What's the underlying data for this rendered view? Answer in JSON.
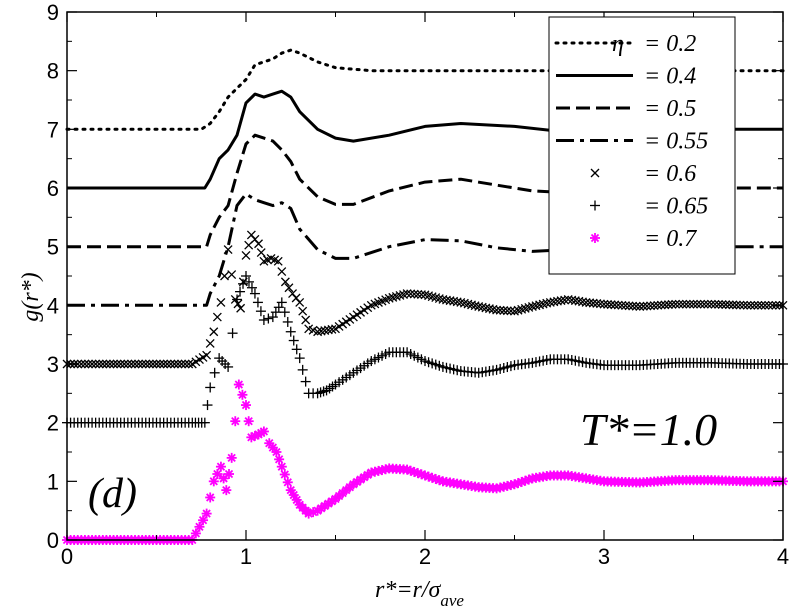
{
  "chart_data": {
    "type": "scatter",
    "title": "",
    "xlabel": {
      "prefix": "r*=r/σ",
      "subscript": "ave"
    },
    "ylabel": "g(r*)",
    "xlim": [
      0,
      4
    ],
    "ylim": [
      0,
      9
    ],
    "x_ticks": [
      "0",
      "1",
      "2",
      "3",
      "4"
    ],
    "y_ticks": [
      "0",
      "1",
      "2",
      "3",
      "4",
      "5",
      "6",
      "7",
      "8",
      "9"
    ],
    "x_minor_step": 0.5,
    "y_minor_step": 0.5,
    "grid": false,
    "legend_placement": "top-right",
    "annotations": {
      "temperature": "T*=1.0",
      "panel": "(d)"
    },
    "series": [
      {
        "name": "η = 0.2",
        "symbol": "η",
        "value_label": "= 0.2",
        "style": "dotted",
        "color": "#000000",
        "points": [
          [
            0,
            7
          ],
          [
            0.75,
            7
          ],
          [
            0.8,
            7.1
          ],
          [
            0.85,
            7.3
          ],
          [
            0.9,
            7.55
          ],
          [
            0.95,
            7.7
          ],
          [
            1.0,
            7.85
          ],
          [
            1.05,
            8.1
          ],
          [
            1.1,
            8.15
          ],
          [
            1.15,
            8.2
          ],
          [
            1.2,
            8.3
          ],
          [
            1.25,
            8.35
          ],
          [
            1.3,
            8.3
          ],
          [
            1.4,
            8.15
          ],
          [
            1.5,
            8.05
          ],
          [
            1.7,
            8.0
          ],
          [
            2.0,
            8.0
          ],
          [
            2.5,
            8.0
          ],
          [
            3.0,
            8.0
          ],
          [
            4.0,
            8.0
          ]
        ]
      },
      {
        "name": "η = 0.4",
        "value_label": "= 0.4",
        "style": "solid",
        "color": "#000000",
        "points": [
          [
            0,
            6
          ],
          [
            0.77,
            6
          ],
          [
            0.8,
            6.15
          ],
          [
            0.85,
            6.5
          ],
          [
            0.9,
            6.65
          ],
          [
            0.95,
            6.9
          ],
          [
            1.0,
            7.45
          ],
          [
            1.05,
            7.6
          ],
          [
            1.1,
            7.55
          ],
          [
            1.15,
            7.6
          ],
          [
            1.2,
            7.65
          ],
          [
            1.25,
            7.55
          ],
          [
            1.3,
            7.3
          ],
          [
            1.4,
            7.0
          ],
          [
            1.5,
            6.85
          ],
          [
            1.6,
            6.8
          ],
          [
            1.8,
            6.9
          ],
          [
            2.0,
            7.05
          ],
          [
            2.2,
            7.1
          ],
          [
            2.5,
            7.05
          ],
          [
            2.8,
            6.95
          ],
          [
            3.0,
            7.0
          ],
          [
            3.5,
            7.0
          ],
          [
            4.0,
            7.0
          ]
        ]
      },
      {
        "name": "η = 0.5",
        "value_label": "= 0.5",
        "style": "dashed",
        "color": "#000000",
        "points": [
          [
            0,
            5
          ],
          [
            0.78,
            5
          ],
          [
            0.8,
            5.2
          ],
          [
            0.85,
            5.5
          ],
          [
            0.9,
            5.7
          ],
          [
            0.95,
            6.25
          ],
          [
            1.0,
            6.75
          ],
          [
            1.05,
            6.9
          ],
          [
            1.1,
            6.85
          ],
          [
            1.15,
            6.8
          ],
          [
            1.2,
            6.65
          ],
          [
            1.25,
            6.45
          ],
          [
            1.3,
            6.15
          ],
          [
            1.4,
            5.85
          ],
          [
            1.5,
            5.72
          ],
          [
            1.6,
            5.72
          ],
          [
            1.8,
            5.95
          ],
          [
            2.0,
            6.1
          ],
          [
            2.2,
            6.15
          ],
          [
            2.4,
            6.05
          ],
          [
            2.6,
            5.95
          ],
          [
            2.8,
            5.92
          ],
          [
            3.0,
            6.0
          ],
          [
            3.3,
            6.05
          ],
          [
            3.6,
            6.0
          ],
          [
            4.0,
            6.0
          ]
        ]
      },
      {
        "name": "η = 0.55",
        "value_label": "= 0.55",
        "style": "dash-dot",
        "color": "#000000",
        "points": [
          [
            0,
            4
          ],
          [
            0.78,
            4
          ],
          [
            0.8,
            4.2
          ],
          [
            0.85,
            4.5
          ],
          [
            0.9,
            5.0
          ],
          [
            0.95,
            5.7
          ],
          [
            1.0,
            5.9
          ],
          [
            1.05,
            5.8
          ],
          [
            1.1,
            5.75
          ],
          [
            1.15,
            5.7
          ],
          [
            1.2,
            5.75
          ],
          [
            1.25,
            5.65
          ],
          [
            1.3,
            5.3
          ],
          [
            1.4,
            4.95
          ],
          [
            1.5,
            4.8
          ],
          [
            1.6,
            4.8
          ],
          [
            1.8,
            5.0
          ],
          [
            2.0,
            5.12
          ],
          [
            2.2,
            5.1
          ],
          [
            2.4,
            4.98
          ],
          [
            2.6,
            4.92
          ],
          [
            2.8,
            4.95
          ],
          [
            3.0,
            5.0
          ],
          [
            3.5,
            5.0
          ],
          [
            4.0,
            5.0
          ]
        ]
      },
      {
        "name": "η = 0.6",
        "value_label": "= 0.6",
        "style": "markers",
        "marker": "x",
        "color": "#000000",
        "points": [
          [
            0,
            3
          ],
          [
            0.1,
            3
          ],
          [
            0.2,
            3
          ],
          [
            0.3,
            3
          ],
          [
            0.4,
            3
          ],
          [
            0.5,
            3
          ],
          [
            0.6,
            3
          ],
          [
            0.7,
            3
          ],
          [
            0.78,
            3.15
          ],
          [
            0.82,
            3.55
          ],
          [
            0.86,
            4.05
          ],
          [
            0.9,
            4.95
          ],
          [
            0.94,
            4.1
          ],
          [
            0.97,
            3.95
          ],
          [
            1.0,
            4.85
          ],
          [
            1.03,
            5.2
          ],
          [
            1.07,
            5.05
          ],
          [
            1.1,
            4.75
          ],
          [
            1.14,
            4.8
          ],
          [
            1.18,
            4.75
          ],
          [
            1.22,
            4.4
          ],
          [
            1.26,
            4.2
          ],
          [
            1.3,
            4.05
          ],
          [
            1.35,
            3.6
          ],
          [
            1.4,
            3.55
          ],
          [
            1.5,
            3.6
          ],
          [
            1.6,
            3.8
          ],
          [
            1.7,
            4.0
          ],
          [
            1.8,
            4.12
          ],
          [
            1.9,
            4.2
          ],
          [
            2.0,
            4.18
          ],
          [
            2.1,
            4.1
          ],
          [
            2.2,
            4.05
          ],
          [
            2.3,
            3.98
          ],
          [
            2.4,
            3.92
          ],
          [
            2.5,
            3.9
          ],
          [
            2.6,
            3.98
          ],
          [
            2.7,
            4.05
          ],
          [
            2.8,
            4.1
          ],
          [
            2.9,
            4.05
          ],
          [
            3.0,
            4.02
          ],
          [
            3.2,
            3.98
          ],
          [
            3.4,
            4.02
          ],
          [
            3.6,
            4.02
          ],
          [
            3.8,
            4.0
          ],
          [
            4.0,
            4.0
          ]
        ]
      },
      {
        "name": "η = 0.65",
        "value_label": "= 0.65",
        "style": "markers",
        "marker": "+",
        "color": "#000000",
        "points": [
          [
            0,
            2
          ],
          [
            0.1,
            2
          ],
          [
            0.2,
            2
          ],
          [
            0.3,
            2
          ],
          [
            0.4,
            2
          ],
          [
            0.5,
            2
          ],
          [
            0.6,
            2
          ],
          [
            0.7,
            2
          ],
          [
            0.77,
            2.0
          ],
          [
            0.8,
            2.6
          ],
          [
            0.85,
            3.1
          ],
          [
            0.9,
            2.95
          ],
          [
            0.95,
            4.1
          ],
          [
            1.0,
            4.5
          ],
          [
            1.05,
            4.2
          ],
          [
            1.1,
            3.75
          ],
          [
            1.15,
            3.8
          ],
          [
            1.2,
            4.05
          ],
          [
            1.25,
            3.55
          ],
          [
            1.3,
            3.1
          ],
          [
            1.35,
            2.5
          ],
          [
            1.4,
            2.5
          ],
          [
            1.45,
            2.55
          ],
          [
            1.5,
            2.65
          ],
          [
            1.6,
            2.85
          ],
          [
            1.7,
            3.05
          ],
          [
            1.8,
            3.2
          ],
          [
            1.9,
            3.2
          ],
          [
            2.0,
            3.05
          ],
          [
            2.1,
            2.95
          ],
          [
            2.2,
            2.88
          ],
          [
            2.3,
            2.85
          ],
          [
            2.4,
            2.9
          ],
          [
            2.5,
            2.98
          ],
          [
            2.6,
            3.02
          ],
          [
            2.7,
            3.08
          ],
          [
            2.8,
            3.08
          ],
          [
            2.9,
            3.02
          ],
          [
            3.0,
            2.98
          ],
          [
            3.2,
            2.98
          ],
          [
            3.4,
            3.02
          ],
          [
            3.6,
            3.02
          ],
          [
            3.8,
            3.0
          ],
          [
            4.0,
            3.0
          ]
        ]
      },
      {
        "name": "η = 0.7",
        "value_label": "= 0.7",
        "style": "markers",
        "marker": "asterisk",
        "color": "#ff00ff",
        "points": [
          [
            0,
            0
          ],
          [
            0.1,
            0
          ],
          [
            0.2,
            0
          ],
          [
            0.3,
            0
          ],
          [
            0.4,
            0
          ],
          [
            0.5,
            0
          ],
          [
            0.6,
            0
          ],
          [
            0.7,
            0
          ],
          [
            0.78,
            0.45
          ],
          [
            0.82,
            1.0
          ],
          [
            0.86,
            1.25
          ],
          [
            0.89,
            0.85
          ],
          [
            0.92,
            1.4
          ],
          [
            0.96,
            2.65
          ],
          [
            1.0,
            2.3
          ],
          [
            1.03,
            1.75
          ],
          [
            1.07,
            1.8
          ],
          [
            1.1,
            1.85
          ],
          [
            1.13,
            1.65
          ],
          [
            1.17,
            1.5
          ],
          [
            1.2,
            1.25
          ],
          [
            1.25,
            0.85
          ],
          [
            1.3,
            0.6
          ],
          [
            1.35,
            0.45
          ],
          [
            1.4,
            0.5
          ],
          [
            1.5,
            0.7
          ],
          [
            1.6,
            0.95
          ],
          [
            1.7,
            1.15
          ],
          [
            1.8,
            1.22
          ],
          [
            1.9,
            1.2
          ],
          [
            2.0,
            1.1
          ],
          [
            2.1,
            1.0
          ],
          [
            2.2,
            0.95
          ],
          [
            2.3,
            0.9
          ],
          [
            2.4,
            0.88
          ],
          [
            2.5,
            0.95
          ],
          [
            2.6,
            1.05
          ],
          [
            2.7,
            1.1
          ],
          [
            2.8,
            1.1
          ],
          [
            2.9,
            1.05
          ],
          [
            3.0,
            1.0
          ],
          [
            3.2,
            0.98
          ],
          [
            3.4,
            1.02
          ],
          [
            3.6,
            1.02
          ],
          [
            3.8,
            1.0
          ],
          [
            4.0,
            1.0
          ]
        ]
      }
    ]
  }
}
